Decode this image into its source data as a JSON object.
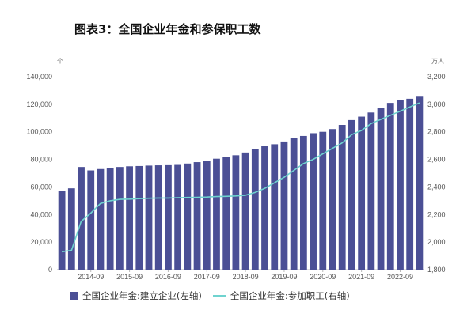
{
  "title": "图表3：全国企业年金和参保职工数",
  "chart_data": {
    "type": "bar",
    "left_unit": "个",
    "right_unit": "万人",
    "left_axis": {
      "min": 0,
      "max": 140000,
      "step": 20000,
      "ticks": [
        "0",
        "20,000",
        "40,000",
        "60,000",
        "80,000",
        "100,000",
        "120,000",
        "140,000"
      ]
    },
    "right_axis": {
      "min": 1800,
      "max": 3200,
      "step": 200,
      "ticks": [
        "1,800",
        "2,000",
        "2,200",
        "2,400",
        "2,600",
        "2,800",
        "3,000",
        "3,200"
      ]
    },
    "x_tick_labels": [
      "2014-09",
      "2015-09",
      "2016-09",
      "2017-09",
      "2018-09",
      "2019-09",
      "2020-09",
      "2021-09",
      "2022-09"
    ],
    "series": [
      {
        "name": "全国企业年金:建立企业(左轴)",
        "type": "bar",
        "axis": "left",
        "color": "#4B4F95",
        "values": [
          57000,
          59000,
          74500,
          72000,
          73000,
          74000,
          74500,
          75000,
          75200,
          75500,
          75700,
          75800,
          76000,
          77000,
          78000,
          79000,
          80500,
          82000,
          83000,
          85000,
          87500,
          89500,
          91000,
          93000,
          95500,
          97000,
          99000,
          100000,
          102000,
          105000,
          108500,
          111000,
          114000,
          117500,
          121000,
          123000,
          124000,
          125500
        ]
      },
      {
        "name": "全国企业年金:参加职工(右轴)",
        "type": "line",
        "axis": "right",
        "color": "#6FD3CF",
        "values": [
          1930,
          1940,
          2150,
          2210,
          2280,
          2300,
          2310,
          2312,
          2315,
          2318,
          2320,
          2320,
          2322,
          2324,
          2325,
          2327,
          2330,
          2332,
          2335,
          2340,
          2360,
          2390,
          2430,
          2470,
          2520,
          2570,
          2600,
          2640,
          2680,
          2720,
          2780,
          2810,
          2860,
          2890,
          2920,
          2950,
          2980,
          3010
        ]
      }
    ],
    "grid": false,
    "legend_position": "bottom"
  }
}
